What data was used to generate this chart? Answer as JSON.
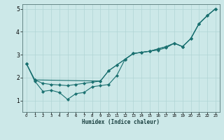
{
  "xlabel": "Humidex (Indice chaleur)",
  "xlim": [
    -0.5,
    23.5
  ],
  "ylim": [
    0.5,
    5.2
  ],
  "yticks": [
    1,
    2,
    3,
    4,
    5
  ],
  "xticks": [
    0,
    1,
    2,
    3,
    4,
    5,
    6,
    7,
    8,
    9,
    10,
    11,
    12,
    13,
    14,
    15,
    16,
    17,
    18,
    19,
    20,
    21,
    22,
    23
  ],
  "bg_color": "#cce8e8",
  "line_color": "#1a7070",
  "grid_color": "#b0d4d4",
  "line1_x": [
    0,
    1,
    2,
    3,
    4,
    5,
    6,
    7,
    8,
    9,
    10,
    11,
    12,
    13,
    14,
    15,
    16,
    17,
    18,
    19,
    20,
    21,
    22,
    23
  ],
  "line1_y": [
    2.6,
    1.85,
    1.4,
    1.45,
    1.35,
    1.05,
    1.3,
    1.35,
    1.6,
    1.65,
    1.7,
    2.1,
    2.8,
    3.05,
    3.1,
    3.15,
    3.2,
    3.3,
    3.5,
    3.35,
    3.7,
    4.35,
    4.7,
    5.0
  ],
  "line2_x": [
    0,
    1,
    2,
    3,
    4,
    5,
    6,
    7,
    8,
    9,
    10,
    11,
    12,
    13,
    14,
    15,
    16,
    17,
    18,
    19,
    20,
    21,
    22,
    23
  ],
  "line2_y": [
    2.6,
    1.9,
    1.75,
    1.7,
    1.68,
    1.65,
    1.7,
    1.75,
    1.8,
    1.85,
    2.3,
    2.55,
    2.8,
    3.05,
    3.1,
    3.15,
    3.25,
    3.35,
    3.5,
    3.35,
    3.7,
    4.35,
    4.7,
    5.0
  ],
  "line3_x": [
    0,
    1,
    9,
    10,
    11,
    12,
    13,
    14,
    15,
    16,
    17,
    18,
    19,
    20,
    21,
    22,
    23
  ],
  "line3_y": [
    2.6,
    1.9,
    1.85,
    2.3,
    2.55,
    2.8,
    3.05,
    3.1,
    3.15,
    3.25,
    3.35,
    3.5,
    3.35,
    3.7,
    4.35,
    4.7,
    5.0
  ]
}
